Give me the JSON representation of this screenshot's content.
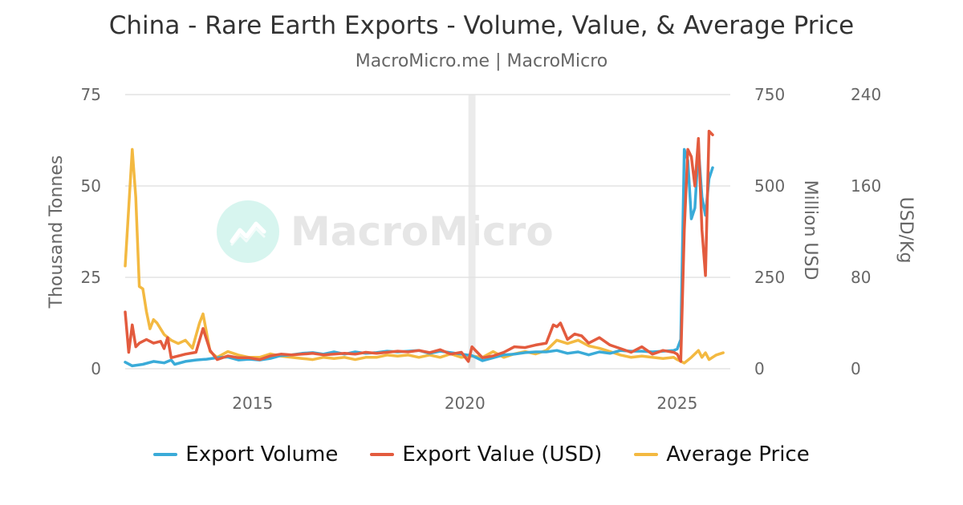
{
  "title": "China - Rare Earth Exports - Volume, Value, & Average Price",
  "subtitle": "MacroMicro.me | MacroMicro",
  "watermark": "MacroMicro",
  "chart_data": {
    "type": "line",
    "axes": {
      "left": {
        "label": "Thousand Tonnes",
        "min": 0,
        "max": 75,
        "ticks": [
          "0",
          "25",
          "50",
          "75"
        ]
      },
      "right1": {
        "label": "Million USD",
        "min": 0,
        "max": 750,
        "ticks": [
          "0",
          "250",
          "500",
          "750"
        ]
      },
      "right2": {
        "label": "USD/Kg",
        "min": 0,
        "max": 240,
        "ticks": [
          "0",
          "80",
          "160",
          "240"
        ]
      }
    },
    "x_ticks": [
      "2015",
      "2020",
      "2025"
    ],
    "xlim": [
      "2012-01",
      "2026-04"
    ],
    "highlight_period": [
      "2020-02",
      "2020-04"
    ],
    "grid": true,
    "legend_position": "bottom",
    "series": [
      {
        "name": "Export Volume",
        "axis": "left",
        "color": "#3aabd8",
        "points": [
          [
            "2012-01",
            1.8
          ],
          [
            "2012-03",
            0.8
          ],
          [
            "2012-06",
            1.2
          ],
          [
            "2012-09",
            2.0
          ],
          [
            "2012-12",
            1.6
          ],
          [
            "2013-02",
            2.4
          ],
          [
            "2013-03",
            1.2
          ],
          [
            "2013-06",
            2.0
          ],
          [
            "2013-09",
            2.4
          ],
          [
            "2013-12",
            2.6
          ],
          [
            "2014-03",
            3.0
          ],
          [
            "2014-06",
            3.2
          ],
          [
            "2014-09",
            2.4
          ],
          [
            "2014-12",
            2.6
          ],
          [
            "2015-03",
            2.4
          ],
          [
            "2015-06",
            2.8
          ],
          [
            "2015-09",
            3.6
          ],
          [
            "2015-12",
            3.8
          ],
          [
            "2016-03",
            4.2
          ],
          [
            "2016-06",
            4.4
          ],
          [
            "2016-09",
            4.0
          ],
          [
            "2016-12",
            4.6
          ],
          [
            "2017-03",
            4.0
          ],
          [
            "2017-06",
            4.6
          ],
          [
            "2017-09",
            4.2
          ],
          [
            "2017-12",
            4.4
          ],
          [
            "2018-03",
            4.8
          ],
          [
            "2018-06",
            4.6
          ],
          [
            "2018-09",
            4.8
          ],
          [
            "2018-12",
            5.0
          ],
          [
            "2019-03",
            4.2
          ],
          [
            "2019-06",
            4.8
          ],
          [
            "2019-09",
            4.4
          ],
          [
            "2019-12",
            4.0
          ],
          [
            "2020-03",
            3.6
          ],
          [
            "2020-06",
            2.2
          ],
          [
            "2020-09",
            3.0
          ],
          [
            "2020-12",
            3.8
          ],
          [
            "2021-03",
            4.0
          ],
          [
            "2021-06",
            4.4
          ],
          [
            "2021-09",
            4.6
          ],
          [
            "2021-12",
            4.6
          ],
          [
            "2022-03",
            5.0
          ],
          [
            "2022-06",
            4.2
          ],
          [
            "2022-09",
            4.6
          ],
          [
            "2022-12",
            3.8
          ],
          [
            "2023-03",
            4.6
          ],
          [
            "2023-06",
            4.2
          ],
          [
            "2023-09",
            5.0
          ],
          [
            "2023-12",
            4.8
          ],
          [
            "2024-03",
            4.8
          ],
          [
            "2024-06",
            4.6
          ],
          [
            "2024-09",
            4.8
          ],
          [
            "2024-12",
            5.0
          ],
          [
            "2025-01",
            5.4
          ],
          [
            "2025-02",
            8.0
          ],
          [
            "2025-03",
            60.0
          ],
          [
            "2025-04",
            57.0
          ],
          [
            "2025-05",
            41.0
          ],
          [
            "2025-06",
            44.0
          ],
          [
            "2025-07",
            60.5
          ],
          [
            "2025-08",
            47.0
          ],
          [
            "2025-09",
            42.0
          ],
          [
            "2025-10",
            52.0
          ],
          [
            "2025-11",
            55.0
          ]
        ]
      },
      {
        "name": "Export Value (USD)",
        "axis": "right1",
        "color": "#e35b3e",
        "points": [
          [
            "2012-01",
            155
          ],
          [
            "2012-02",
            45
          ],
          [
            "2012-03",
            120
          ],
          [
            "2012-04",
            60
          ],
          [
            "2012-05",
            70
          ],
          [
            "2012-07",
            80
          ],
          [
            "2012-09",
            70
          ],
          [
            "2012-11",
            75
          ],
          [
            "2012-12",
            55
          ],
          [
            "2013-01",
            85
          ],
          [
            "2013-02",
            30
          ],
          [
            "2013-06",
            40
          ],
          [
            "2013-09",
            45
          ],
          [
            "2013-11",
            110
          ],
          [
            "2014-01",
            50
          ],
          [
            "2014-03",
            25
          ],
          [
            "2014-06",
            35
          ],
          [
            "2014-09",
            30
          ],
          [
            "2014-12",
            30
          ],
          [
            "2015-03",
            25
          ],
          [
            "2015-06",
            35
          ],
          [
            "2015-09",
            40
          ],
          [
            "2015-12",
            38
          ],
          [
            "2016-03",
            40
          ],
          [
            "2016-06",
            42
          ],
          [
            "2016-09",
            38
          ],
          [
            "2016-12",
            40
          ],
          [
            "2017-03",
            42
          ],
          [
            "2017-06",
            40
          ],
          [
            "2017-09",
            45
          ],
          [
            "2017-12",
            42
          ],
          [
            "2018-03",
            45
          ],
          [
            "2018-06",
            48
          ],
          [
            "2018-09",
            46
          ],
          [
            "2018-12",
            50
          ],
          [
            "2019-03",
            44
          ],
          [
            "2019-06",
            52
          ],
          [
            "2019-09",
            40
          ],
          [
            "2019-12",
            45
          ],
          [
            "2020-02",
            20
          ],
          [
            "2020-03",
            60
          ],
          [
            "2020-06",
            30
          ],
          [
            "2020-09",
            35
          ],
          [
            "2020-12",
            45
          ],
          [
            "2021-03",
            60
          ],
          [
            "2021-06",
            58
          ],
          [
            "2021-09",
            65
          ],
          [
            "2021-12",
            70
          ],
          [
            "2022-02",
            120
          ],
          [
            "2022-03",
            115
          ],
          [
            "2022-04",
            125
          ],
          [
            "2022-06",
            80
          ],
          [
            "2022-08",
            95
          ],
          [
            "2022-10",
            90
          ],
          [
            "2022-12",
            70
          ],
          [
            "2023-03",
            85
          ],
          [
            "2023-06",
            65
          ],
          [
            "2023-09",
            55
          ],
          [
            "2023-12",
            45
          ],
          [
            "2024-03",
            60
          ],
          [
            "2024-06",
            40
          ],
          [
            "2024-09",
            50
          ],
          [
            "2024-12",
            45
          ],
          [
            "2025-01",
            40
          ],
          [
            "2025-02",
            20
          ],
          [
            "2025-03",
            380
          ],
          [
            "2025-04",
            600
          ],
          [
            "2025-05",
            580
          ],
          [
            "2025-06",
            500
          ],
          [
            "2025-07",
            630
          ],
          [
            "2025-08",
            380
          ],
          [
            "2025-09",
            255
          ],
          [
            "2025-10",
            650
          ],
          [
            "2025-11",
            640
          ]
        ]
      },
      {
        "name": "Average Price",
        "axis": "right2",
        "color": "#f3b941",
        "points": [
          [
            "2012-01",
            90
          ],
          [
            "2012-03",
            192
          ],
          [
            "2012-04",
            150
          ],
          [
            "2012-05",
            72
          ],
          [
            "2012-06",
            70
          ],
          [
            "2012-07",
            50
          ],
          [
            "2012-08",
            35
          ],
          [
            "2012-09",
            43
          ],
          [
            "2012-10",
            40
          ],
          [
            "2012-12",
            30
          ],
          [
            "2013-02",
            25
          ],
          [
            "2013-04",
            22
          ],
          [
            "2013-06",
            25
          ],
          [
            "2013-08",
            18
          ],
          [
            "2013-10",
            40
          ],
          [
            "2013-11",
            48
          ],
          [
            "2014-01",
            15
          ],
          [
            "2014-03",
            10
          ],
          [
            "2014-06",
            15
          ],
          [
            "2014-09",
            12
          ],
          [
            "2014-12",
            10
          ],
          [
            "2015-03",
            10
          ],
          [
            "2015-06",
            13
          ],
          [
            "2015-09",
            11
          ],
          [
            "2015-12",
            10
          ],
          [
            "2016-03",
            9
          ],
          [
            "2016-06",
            8
          ],
          [
            "2016-09",
            10
          ],
          [
            "2016-12",
            9
          ],
          [
            "2017-03",
            10
          ],
          [
            "2017-06",
            8
          ],
          [
            "2017-09",
            10
          ],
          [
            "2017-12",
            10
          ],
          [
            "2018-03",
            12
          ],
          [
            "2018-06",
            11
          ],
          [
            "2018-09",
            12
          ],
          [
            "2018-12",
            10
          ],
          [
            "2019-03",
            12
          ],
          [
            "2019-06",
            10
          ],
          [
            "2019-09",
            13
          ],
          [
            "2019-12",
            10
          ],
          [
            "2020-03",
            11
          ],
          [
            "2020-06",
            10
          ],
          [
            "2020-09",
            15
          ],
          [
            "2020-12",
            10
          ],
          [
            "2021-03",
            13
          ],
          [
            "2021-06",
            15
          ],
          [
            "2021-09",
            13
          ],
          [
            "2021-12",
            16
          ],
          [
            "2022-03",
            25
          ],
          [
            "2022-06",
            22
          ],
          [
            "2022-09",
            25
          ],
          [
            "2022-12",
            20
          ],
          [
            "2023-03",
            18
          ],
          [
            "2023-06",
            15
          ],
          [
            "2023-09",
            12
          ],
          [
            "2023-12",
            10
          ],
          [
            "2024-03",
            11
          ],
          [
            "2024-06",
            10
          ],
          [
            "2024-09",
            9
          ],
          [
            "2024-12",
            10
          ],
          [
            "2025-01",
            8
          ],
          [
            "2025-03",
            5
          ],
          [
            "2025-05",
            10
          ],
          [
            "2025-07",
            16
          ],
          [
            "2025-08",
            10
          ],
          [
            "2025-09",
            14
          ],
          [
            "2025-10",
            8
          ],
          [
            "2025-12",
            12
          ],
          [
            "2026-02",
            14
          ]
        ]
      }
    ]
  }
}
